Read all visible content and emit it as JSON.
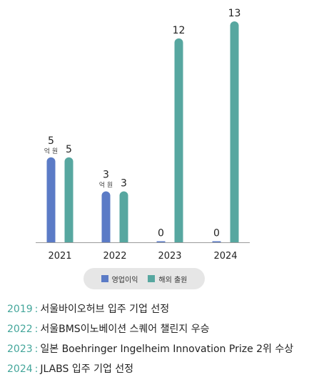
{
  "chart_data": {
    "type": "bar",
    "categories": [
      "2021",
      "2022",
      "2023",
      "2024"
    ],
    "series": [
      {
        "name": "영업이익",
        "values": [
          5,
          3,
          0,
          0
        ],
        "color": "#5b7bc6"
      },
      {
        "name": "해외 출원",
        "values": [
          5,
          3,
          12,
          13
        ],
        "color": "#57a7a0"
      }
    ],
    "unit_label": "억 원",
    "legend_position": "bottom",
    "grid": false,
    "ylim": [
      0,
      13
    ]
  },
  "notes": [
    {
      "year": "2019",
      "text": "서울바이오허브 입주 기업 선정"
    },
    {
      "year": "2022",
      "text": "서울BMS이노베이션 스퀘어 챌린지 우승"
    },
    {
      "year": "2023",
      "text": "일본 Boehringer Ingelheim Innovation Prize 2위 수상"
    },
    {
      "year": "2024",
      "text": "JLABS 입주 기업 선정"
    }
  ]
}
